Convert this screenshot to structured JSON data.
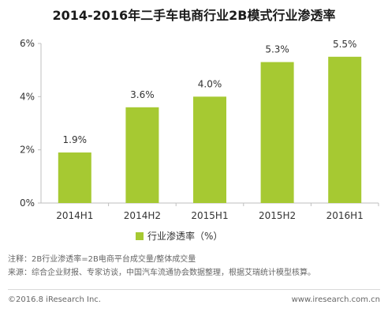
{
  "chart_data": {
    "type": "bar",
    "title": "2014-2016年二手车电商行业2B模式行业渗透率",
    "categories": [
      "2014H1",
      "2014H2",
      "2015H1",
      "2015H2",
      "2016H1"
    ],
    "series": [
      {
        "name": "行业渗透率（%）",
        "values": [
          1.9,
          3.6,
          4.0,
          5.3,
          5.5
        ],
        "value_labels": [
          "1.9%",
          "3.6%",
          "4.0%",
          "5.3%",
          "5.5%"
        ]
      }
    ],
    "ylim": [
      0,
      6
    ],
    "yticks": [
      0,
      2,
      4,
      6
    ],
    "ytick_labels": [
      "0%",
      "2%",
      "4%",
      "6%"
    ],
    "grid": false,
    "legend_position": "bottom"
  },
  "notes": {
    "note": "注释：2B行业渗透率=2B电商平台成交量/整体成交量",
    "source": "来源：综合企业财报、专家访谈，中国汽车流通协会数据整理，根据艾瑞统计模型核算。"
  },
  "footer": {
    "copyright": "©2016.8 iResearch Inc.",
    "website": "www.iresearch.com.cn"
  },
  "colors": {
    "bar": "#a6c932",
    "axis": "#bfbfbf",
    "text": "#333333"
  }
}
